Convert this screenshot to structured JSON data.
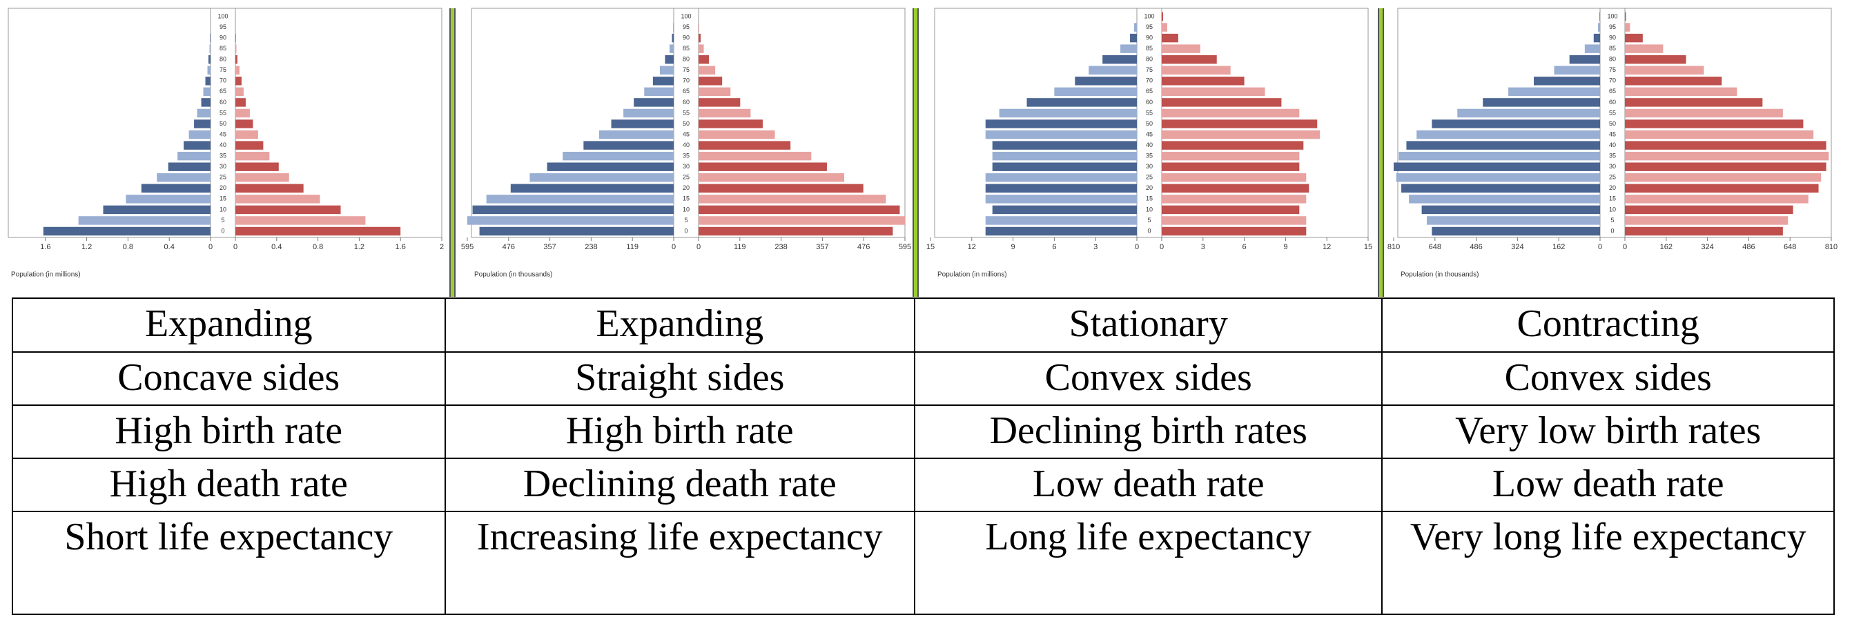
{
  "chart_data": [
    {
      "type": "pyramid",
      "xlabel": "Population (in millions)",
      "xlim": [
        0,
        2
      ],
      "left_xticks": [
        1.6,
        1.2,
        0.8,
        0.4,
        0
      ],
      "right_xticks": [
        0,
        0.4,
        0.8,
        1.2,
        1.6,
        2
      ],
      "categories": [
        "0",
        "5",
        "10",
        "15",
        "20",
        "25",
        "30",
        "35",
        "40",
        "45",
        "50",
        "55",
        "60",
        "65",
        "70",
        "75",
        "80",
        "85",
        "90",
        "95",
        "100"
      ],
      "series": [
        {
          "side": "left",
          "colors": [
            "#4a6591",
            "#98aed3"
          ],
          "values": [
            1.62,
            1.28,
            1.04,
            0.82,
            0.67,
            0.52,
            0.41,
            0.32,
            0.26,
            0.21,
            0.16,
            0.13,
            0.09,
            0.07,
            0.05,
            0.03,
            0.02,
            0.01,
            0.005,
            0,
            0
          ]
        },
        {
          "side": "right",
          "colors": [
            "#c0504d",
            "#e8a2a0"
          ],
          "values": [
            1.6,
            1.26,
            1.02,
            0.82,
            0.66,
            0.52,
            0.42,
            0.33,
            0.27,
            0.22,
            0.17,
            0.14,
            0.1,
            0.08,
            0.06,
            0.04,
            0.02,
            0.01,
            0.005,
            0,
            0
          ]
        }
      ]
    },
    {
      "type": "pyramid",
      "xlabel": "Population (in thousands)",
      "xlim": [
        0,
        595
      ],
      "left_xticks": [
        595,
        476,
        357,
        238,
        119,
        0
      ],
      "right_xticks": [
        0,
        119,
        238,
        357,
        476,
        595
      ],
      "categories": [
        "0",
        "5",
        "10",
        "15",
        "20",
        "25",
        "30",
        "35",
        "40",
        "45",
        "50",
        "55",
        "60",
        "65",
        "70",
        "75",
        "80",
        "85",
        "90",
        "95",
        "100"
      ],
      "series": [
        {
          "side": "left",
          "colors": [
            "#4a6591",
            "#98aed3"
          ],
          "values": [
            560,
            595,
            580,
            540,
            470,
            415,
            365,
            320,
            260,
            215,
            180,
            145,
            115,
            85,
            60,
            40,
            25,
            12,
            5,
            2,
            0
          ]
        },
        {
          "side": "right",
          "colors": [
            "#c0504d",
            "#e8a2a0"
          ],
          "values": [
            560,
            595,
            580,
            540,
            475,
            420,
            370,
            325,
            265,
            220,
            185,
            150,
            120,
            92,
            68,
            48,
            30,
            15,
            6,
            2,
            0
          ]
        }
      ]
    },
    {
      "type": "pyramid",
      "xlabel": "Population (in millions)",
      "xlim": [
        0,
        15
      ],
      "left_xticks": [
        15,
        12,
        9,
        6,
        3,
        0
      ],
      "right_xticks": [
        0,
        3,
        6,
        9,
        12,
        15
      ],
      "categories": [
        "0",
        "5",
        "10",
        "15",
        "20",
        "25",
        "30",
        "35",
        "40",
        "45",
        "50",
        "55",
        "60",
        "65",
        "70",
        "75",
        "80",
        "85",
        "90",
        "95",
        "100"
      ],
      "series": [
        {
          "side": "left",
          "colors": [
            "#4a6591",
            "#98aed3"
          ],
          "values": [
            11,
            11,
            10.5,
            11,
            11,
            11,
            10.5,
            10.5,
            10.5,
            11,
            11,
            10,
            8,
            6,
            4.5,
            3.5,
            2.5,
            1.2,
            0.5,
            0.2,
            0
          ]
        },
        {
          "side": "right",
          "colors": [
            "#c0504d",
            "#e8a2a0"
          ],
          "values": [
            10.5,
            10.5,
            10,
            10.5,
            10.7,
            10.5,
            10,
            10,
            10.3,
            11.5,
            11.3,
            10,
            8.7,
            7.5,
            6,
            5,
            4,
            2.8,
            1.2,
            0.4,
            0.1
          ]
        }
      ]
    },
    {
      "type": "pyramid",
      "xlabel": "Population (in thousands)",
      "xlim": [
        0,
        810
      ],
      "left_xticks": [
        810,
        648,
        486,
        324,
        162,
        0
      ],
      "right_xticks": [
        0,
        162,
        324,
        486,
        648,
        810
      ],
      "categories": [
        "0",
        "5",
        "10",
        "15",
        "20",
        "25",
        "30",
        "35",
        "40",
        "45",
        "50",
        "55",
        "60",
        "65",
        "70",
        "75",
        "80",
        "85",
        "90",
        "95",
        "100"
      ],
      "series": [
        {
          "side": "left",
          "colors": [
            "#4a6591",
            "#98aed3"
          ],
          "values": [
            660,
            680,
            700,
            750,
            780,
            800,
            810,
            790,
            760,
            720,
            660,
            560,
            460,
            360,
            260,
            180,
            120,
            60,
            25,
            8,
            2
          ]
        },
        {
          "side": "right",
          "colors": [
            "#c0504d",
            "#e8a2a0"
          ],
          "values": [
            620,
            640,
            660,
            720,
            760,
            770,
            790,
            800,
            790,
            740,
            700,
            620,
            540,
            440,
            380,
            310,
            240,
            150,
            70,
            20,
            4
          ]
        }
      ]
    }
  ],
  "table": {
    "rows": [
      [
        "Expanding",
        "Expanding",
        "Stationary",
        "Contracting"
      ],
      [
        "Concave sides",
        "Straight sides",
        "Convex sides",
        "Convex sides"
      ],
      [
        "High birth rate",
        "High birth rate",
        "Declining birth rates",
        "Very low birth rates"
      ],
      [
        "High death rate",
        "Declining death rate",
        "Low death rate",
        "Low death rate"
      ],
      [
        "Short life expectancy",
        "Increasing life expectancy",
        "Long life expectancy",
        "Very long life expectancy"
      ]
    ]
  }
}
